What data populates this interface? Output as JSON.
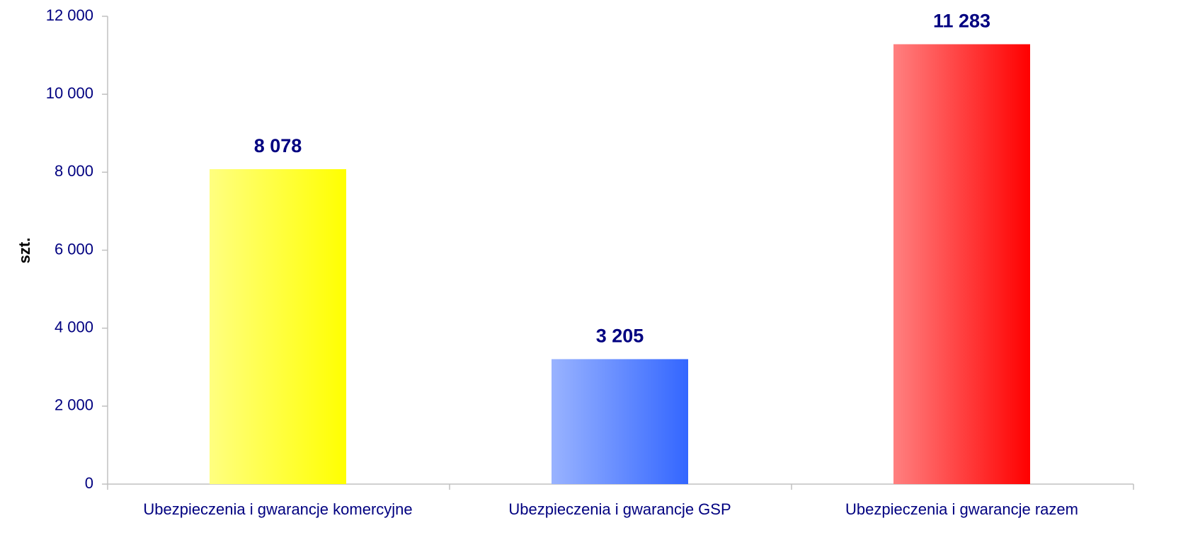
{
  "chart_data": {
    "type": "bar",
    "y_label": "szt.",
    "categories": [
      "Ubezpieczenia i gwarancje komercyjne",
      "Ubezpieczenia i gwarancje GSP",
      "Ubezpieczenia i gwarancje razem"
    ],
    "values": [
      8078,
      3205,
      11283
    ],
    "value_labels": [
      "8 078",
      "3 205",
      "11 283"
    ],
    "colors": [
      "#ffff00",
      "#3366ff",
      "#ff0000"
    ],
    "ylim": [
      0,
      12000
    ],
    "yticks": [
      0,
      {
        "value": 2000,
        "label": "2 000"
      },
      {
        "value": 4000,
        "label": "4 000"
      },
      {
        "value": 6000,
        "label": "6 000"
      },
      {
        "value": 8000,
        "label": "8 000"
      },
      {
        "value": 10000,
        "label": "10 000"
      },
      {
        "value": 12000,
        "label": "12 000"
      }
    ]
  }
}
